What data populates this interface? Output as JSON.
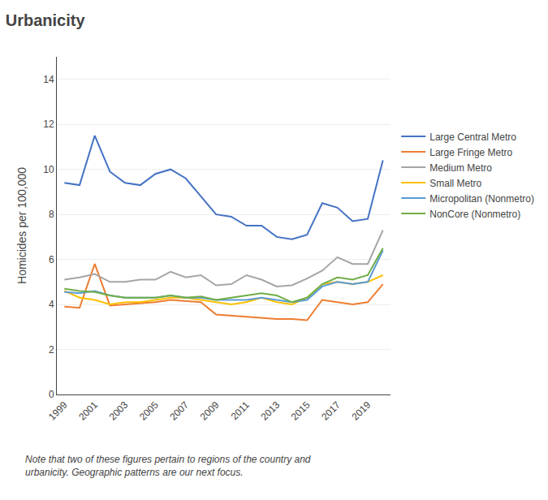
{
  "chart_data": {
    "type": "line",
    "title": "Urbanicity",
    "ylabel": "Homicides per 100,000",
    "x": [
      1999,
      2000,
      2001,
      2002,
      2003,
      2004,
      2005,
      2006,
      2007,
      2008,
      2009,
      2010,
      2011,
      2012,
      2013,
      2014,
      2015,
      2016,
      2017,
      2018,
      2019,
      2020
    ],
    "series": [
      {
        "name": "Large Central Metro",
        "color": "#4472c4",
        "values": [
          9.4,
          9.3,
          11.5,
          9.9,
          9.4,
          9.3,
          9.8,
          10.0,
          9.6,
          8.8,
          8.0,
          7.9,
          7.5,
          7.5,
          7.0,
          6.9,
          7.1,
          8.5,
          8.3,
          7.7,
          7.8,
          10.4
        ]
      },
      {
        "name": "Large Fringe Metro",
        "color": "#ed7d31",
        "values": [
          3.9,
          3.85,
          5.8,
          3.95,
          4.0,
          4.05,
          4.1,
          4.2,
          4.15,
          4.1,
          3.55,
          3.5,
          3.45,
          3.4,
          3.35,
          3.35,
          3.3,
          4.2,
          4.1,
          4.0,
          4.1,
          4.9
        ]
      },
      {
        "name": "Medium Metro",
        "color": "#a5a5a5",
        "values": [
          5.1,
          5.2,
          5.35,
          5.0,
          5.0,
          5.1,
          5.1,
          5.45,
          5.2,
          5.3,
          4.85,
          4.9,
          5.3,
          5.1,
          4.8,
          4.85,
          5.15,
          5.5,
          6.1,
          5.8,
          5.8,
          7.3
        ]
      },
      {
        "name": "Small Metro",
        "color": "#ffc000",
        "values": [
          4.6,
          4.3,
          4.2,
          4.0,
          4.1,
          4.1,
          4.2,
          4.3,
          4.3,
          4.2,
          4.1,
          4.0,
          4.1,
          4.3,
          4.1,
          4.0,
          4.3,
          4.9,
          5.0,
          4.9,
          5.0,
          5.3
        ]
      },
      {
        "name": "Micropolitan (Nonmetro)",
        "color": "#5b9bd5",
        "values": [
          4.55,
          4.5,
          4.6,
          4.4,
          4.3,
          4.3,
          4.3,
          4.4,
          4.3,
          4.3,
          4.2,
          4.2,
          4.2,
          4.3,
          4.2,
          4.1,
          4.2,
          4.8,
          5.0,
          4.9,
          5.0,
          6.4
        ]
      },
      {
        "name": "NonCore (Nonmetro)",
        "color": "#70ad47",
        "values": [
          4.7,
          4.6,
          4.55,
          4.4,
          4.3,
          4.3,
          4.3,
          4.4,
          4.3,
          4.35,
          4.2,
          4.3,
          4.4,
          4.5,
          4.4,
          4.1,
          4.3,
          4.9,
          5.2,
          5.1,
          5.3,
          6.5
        ]
      }
    ],
    "xlim": [
      1998.5,
      2020.5
    ],
    "xticks": [
      1999,
      2001,
      2003,
      2005,
      2007,
      2009,
      2011,
      2013,
      2015,
      2017,
      2019
    ],
    "ylim": [
      0,
      15
    ],
    "yticks": [
      0,
      2,
      4,
      6,
      8,
      10,
      12,
      14
    ],
    "grid": "y",
    "legend": "right",
    "annotations": [
      "Note that two of these figures pertain to regions of the country and\nurbanicity. Geographic patterns are our next focus."
    ]
  }
}
